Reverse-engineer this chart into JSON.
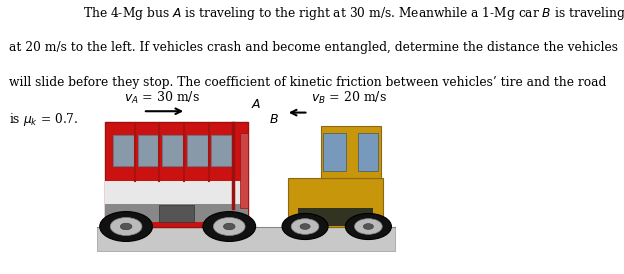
{
  "title_line1": "The 4-Mg bus $A$ is traveling to the right at 30 m/s. Meanwhile a 1-Mg car $B$ is traveling",
  "title_line2": "at 20 m/s to the left. If vehicles crash and become entangled, determine the distance the vehicles",
  "title_line3": "will slide before they stop. The coefficient of kinetic friction between vehicles’ tire and the road",
  "title_line4": "is $\\mu_k$ = 0.7.",
  "va_label": "$v_A$ = 30 m/s",
  "vb_label": "$v_B$ = 20 m/s",
  "label_A": "$A$",
  "label_B": "$B$",
  "bg_color": "#ffffff",
  "road_color": "#c8c8c8",
  "road_top_color": "#b0b0b0",
  "bus_red": "#cc1111",
  "bus_dark_red": "#991111",
  "bus_white": "#e8e8e8",
  "bus_silver": "#c0c0c0",
  "bus_window": "#8899aa",
  "bus_window_dark": "#667788",
  "bus_pillar": "#aa1111",
  "car_yellow": "#c8960a",
  "car_yellow2": "#d4a820",
  "car_dark": "#555533",
  "car_window": "#6688aa",
  "wheel_dark": "#111111",
  "wheel_mid": "#555555",
  "wheel_light": "#999999",
  "text_color": "#000000",
  "title_fontsize": 8.8,
  "label_fontsize": 9.0,
  "small_fontsize": 8.5,
  "figsize": [
    6.24,
    2.74
  ],
  "dpi": 100
}
